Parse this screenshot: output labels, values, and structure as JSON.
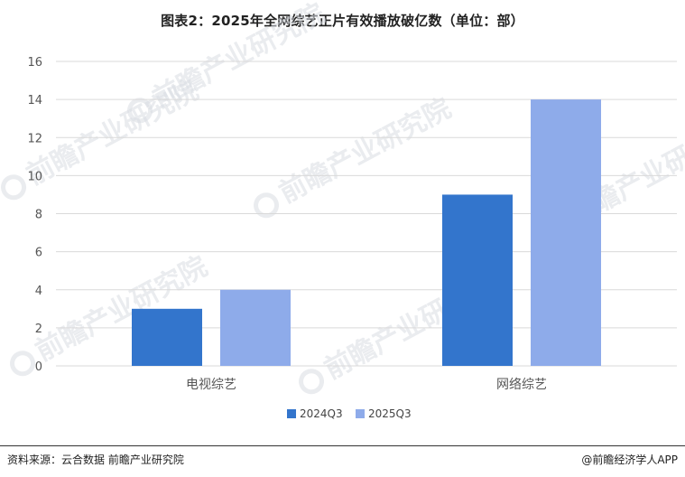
{
  "title": "图表2：2025年全网综艺正片有效播放破亿数（单位：部）",
  "source": "资料来源：云合数据  前瞻产业研究院",
  "copyright": "@前瞻经济学人APP",
  "watermark": "前瞻产业研究院",
  "colors": {
    "series1": "#3375cc",
    "series2": "#8eabea",
    "grid": "#d9d9d9",
    "axis_text": "#555555"
  },
  "chart_data": {
    "type": "bar",
    "title": "图表2：2025年全网综艺正片有效播放破亿数（单位：部）",
    "categories": [
      "电视综艺",
      "网络综艺"
    ],
    "series": [
      {
        "name": "2024Q3",
        "values": [
          3,
          9
        ]
      },
      {
        "name": "2025Q3",
        "values": [
          4,
          14
        ]
      }
    ],
    "yticks": [
      0,
      2,
      4,
      6,
      8,
      10,
      12,
      14,
      16
    ],
    "ylim": [
      0,
      16
    ],
    "grid": true,
    "legend_position": "bottom"
  }
}
